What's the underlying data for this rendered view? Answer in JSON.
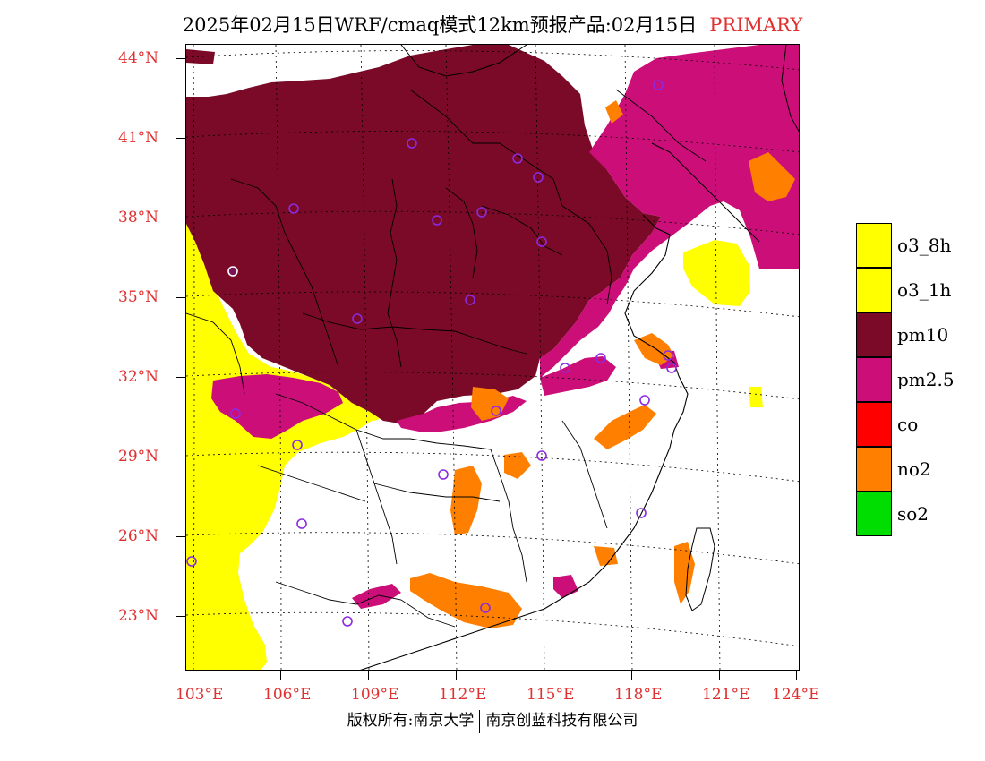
{
  "title": {
    "main": "2025年02月15日WRF/cmaq模式12km预报产品:02月15日",
    "tag": "PRIMARY"
  },
  "colors": {
    "o3_8h": "#ffff00",
    "o3_1h": "#ffff00",
    "pm10": "#7a0a28",
    "pm25": "#cc0e78",
    "co": "#ff0000",
    "no2": "#ff7f00",
    "so2": "#00dd00",
    "axis_text": "#e03030",
    "station_marker": "#8a2be2"
  },
  "axes": {
    "lat_labels": [
      "44°N",
      "41°N",
      "38°N",
      "35°N",
      "32°N",
      "29°N",
      "26°N",
      "23°N"
    ],
    "lon_labels": [
      "103°E",
      "106°E",
      "109°E",
      "112°E",
      "115°E",
      "118°E",
      "121°E",
      "124°E"
    ]
  },
  "legend": [
    {
      "key": "o3_8h",
      "label": "o3_8h"
    },
    {
      "key": "o3_1h",
      "label": "o3_1h"
    },
    {
      "key": "pm10",
      "label": "pm10"
    },
    {
      "key": "pm25",
      "label": "pm2.5"
    },
    {
      "key": "co",
      "label": "co"
    },
    {
      "key": "no2",
      "label": "no2"
    },
    {
      "key": "so2",
      "label": "so2"
    }
  ],
  "copyright": {
    "left": "版权所有:南京大学",
    "right": "南京创蓝科技有限公司"
  }
}
